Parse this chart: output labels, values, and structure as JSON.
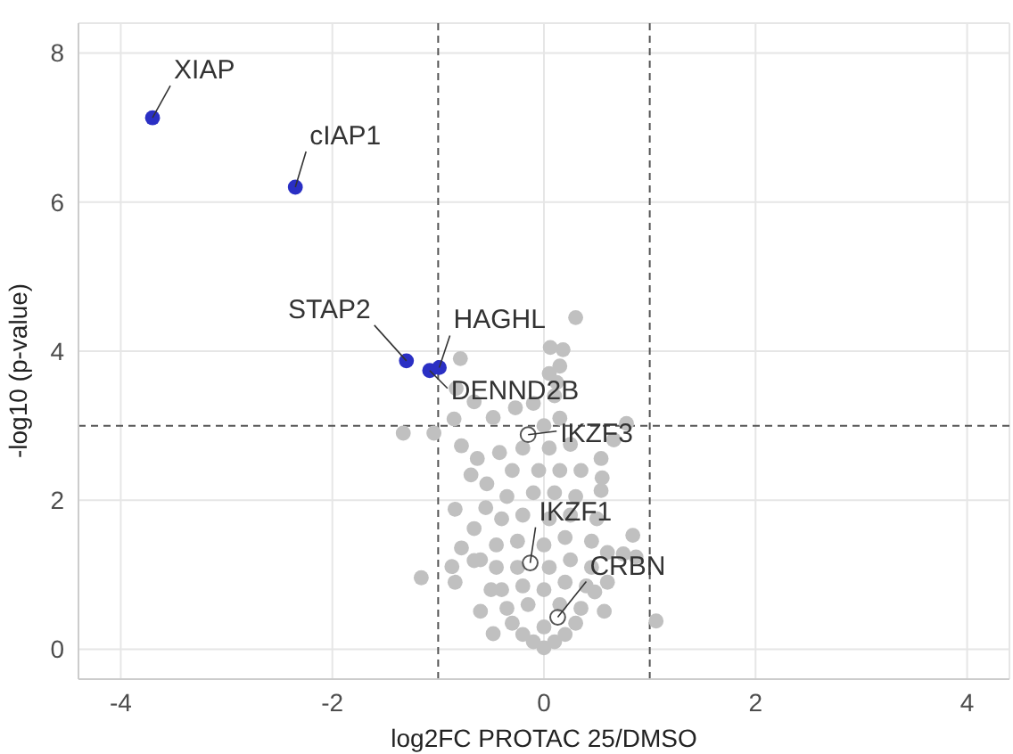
{
  "chart_data": {
    "type": "scatter",
    "xlabel": "log2FC PROTAC 25/DMSO",
    "ylabel": "-log10 (p-value)",
    "xlim": [
      -4.4,
      4.4
    ],
    "ylim": [
      -0.4,
      8.4
    ],
    "xticks": [
      -4,
      -2,
      0,
      2,
      4
    ],
    "yticks": [
      0,
      2,
      4,
      6,
      8
    ],
    "grid": true,
    "legend": false,
    "marker": "circle",
    "series": [
      {
        "color": "#c0c0c0",
        "x": [
          0.3,
          -0.79,
          0.06,
          0.18,
          -0.83,
          -0.66,
          -0.27,
          0.12,
          -1.33,
          -1.04,
          -0.85,
          -0.48,
          0.78,
          0.66,
          -0.78,
          -0.63,
          -0.42,
          0.54,
          -0.69,
          -0.54,
          0.54,
          -0.84,
          -0.66,
          -0.78,
          0.84,
          0.75,
          0.87,
          -1.16,
          -0.87,
          -0.66,
          -0.84,
          -0.6,
          -0.48,
          0.57,
          1.06,
          0.48,
          0,
          -0.1,
          0.1,
          -0.2,
          0.2,
          -0.3,
          0,
          0.3,
          -0.35,
          -0.15,
          0.15,
          0.35,
          -0.4,
          -0.2,
          0,
          0.2,
          0.4,
          -0.45,
          -0.25,
          0.05,
          0.25,
          0.45,
          -0.45,
          -0.25,
          0,
          0.2,
          0.45,
          -0.4,
          -0.2,
          0.05,
          0.25,
          0.5,
          -0.35,
          -0.1,
          0.1,
          0.3,
          -0.3,
          -0.05,
          0.15,
          0.35,
          -0.2,
          0.05,
          0.25,
          0,
          0.15,
          -0.1,
          0.1,
          0.05,
          0.15,
          0.55,
          -0.55,
          0.6,
          -0.6,
          0.6,
          -0.5
        ],
        "values": [
          4.45,
          3.9,
          4.05,
          4.02,
          3.5,
          3.32,
          3.24,
          3.58,
          2.9,
          2.9,
          3.09,
          3.11,
          3.03,
          2.81,
          2.73,
          2.56,
          2.64,
          2.56,
          2.34,
          2.22,
          2.13,
          1.88,
          1.62,
          1.36,
          1.53,
          1.28,
          1.24,
          0.96,
          1.11,
          1.19,
          0.9,
          0.51,
          0.21,
          0.51,
          0.38,
          0.77,
          0.02,
          0.1,
          0.1,
          0.2,
          0.2,
          0.35,
          0.3,
          0.35,
          0.55,
          0.6,
          0.6,
          0.55,
          0.8,
          0.85,
          0.8,
          0.9,
          0.85,
          1.1,
          1.1,
          1.1,
          1.2,
          1.1,
          1.4,
          1.45,
          1.4,
          1.5,
          1.45,
          1.75,
          1.8,
          1.75,
          1.8,
          1.75,
          2.05,
          2.1,
          2.1,
          2.05,
          2.4,
          2.4,
          2.4,
          2.4,
          2.7,
          2.7,
          2.75,
          3.0,
          3.1,
          3.3,
          3.4,
          3.7,
          3.8,
          2.3,
          1.9,
          1.3,
          1.2,
          0.9,
          0.8
        ]
      },
      {
        "color": "#2a2fc4",
        "x": [
          -3.7,
          -2.35,
          -1.3,
          -1.08,
          -0.99
        ],
        "values": [
          7.13,
          6.2,
          3.87,
          3.74,
          3.78
        ]
      },
      {
        "color": "#555555",
        "x": [
          -0.15,
          -0.13,
          0.13
        ],
        "values": [
          2.88,
          1.16,
          0.43
        ]
      }
    ],
    "ref_lines": [
      {
        "axis": "x",
        "value": -1,
        "line_style": "dashed",
        "color": "#555555"
      },
      {
        "axis": "x",
        "value": 1,
        "line_style": "dashed",
        "color": "#555555"
      },
      {
        "axis": "y",
        "value": 3,
        "line_style": "dashed",
        "color": "#555555"
      }
    ],
    "annotations": [
      {
        "text": "XIAP",
        "x": -3.7,
        "y": 7.13
      },
      {
        "text": "cIAP1",
        "x": -2.35,
        "y": 6.2
      },
      {
        "text": "STAP2",
        "x": -1.3,
        "y": 3.87
      },
      {
        "text": "DENND2B",
        "x": -1.08,
        "y": 3.74
      },
      {
        "text": "HAGHL",
        "x": -0.99,
        "y": 3.78
      },
      {
        "text": "IKZF3",
        "x": -0.15,
        "y": 2.88
      },
      {
        "text": "IKZF1",
        "x": -0.13,
        "y": 1.16
      },
      {
        "text": "CRBN",
        "x": 0.13,
        "y": 0.43
      }
    ]
  }
}
